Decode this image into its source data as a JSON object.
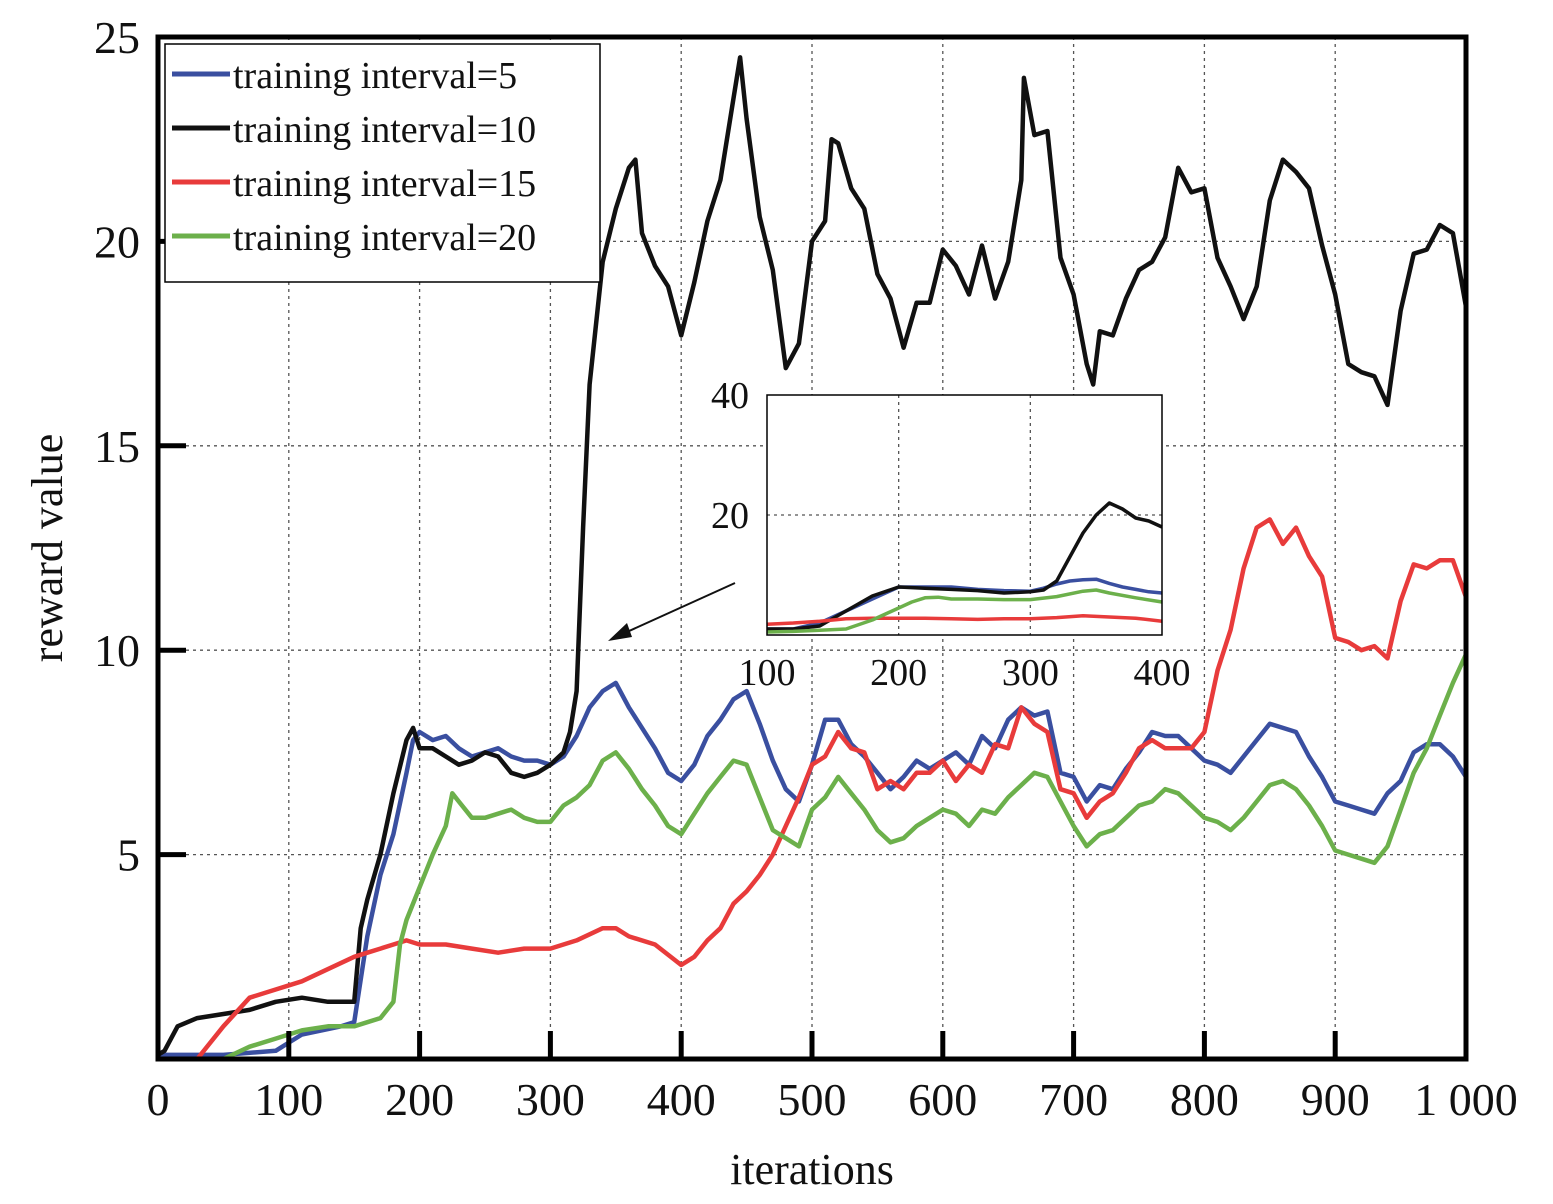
{
  "chart_data": {
    "type": "line",
    "title": "",
    "xlabel": "iterations",
    "ylabel": "reward value",
    "xlim": [
      0,
      1000
    ],
    "ylim": [
      0,
      25
    ],
    "x_ticks": [
      0,
      100,
      200,
      300,
      400,
      500,
      600,
      700,
      800,
      900,
      1000
    ],
    "x_tick_labels": [
      "0",
      "100",
      "200",
      "300",
      "400",
      "500",
      "600",
      "700",
      "800",
      "900",
      "1 000"
    ],
    "y_ticks": [
      5,
      10,
      15,
      20,
      25
    ],
    "y_tick_labels": [
      "5",
      "10",
      "15",
      "20",
      "25"
    ],
    "grid": true,
    "legend_position": "top-left",
    "series": [
      {
        "name": "training interval=5",
        "color": "#3a4fa0",
        "x": [
          0,
          50,
          90,
          100,
          110,
          140,
          150,
          160,
          170,
          180,
          190,
          195,
          200,
          210,
          220,
          230,
          240,
          250,
          260,
          270,
          280,
          290,
          300,
          310,
          320,
          330,
          340,
          350,
          360,
          370,
          380,
          390,
          400,
          410,
          420,
          430,
          440,
          450,
          460,
          470,
          480,
          490,
          500,
          510,
          520,
          530,
          540,
          550,
          560,
          570,
          580,
          590,
          600,
          610,
          620,
          630,
          640,
          650,
          660,
          670,
          680,
          690,
          700,
          710,
          720,
          730,
          740,
          750,
          760,
          770,
          780,
          790,
          800,
          810,
          820,
          830,
          840,
          850,
          860,
          870,
          880,
          890,
          900,
          910,
          920,
          930,
          940,
          950,
          960,
          970,
          980,
          990,
          1000
        ],
        "values": [
          0.1,
          0.1,
          0.2,
          0.4,
          0.6,
          0.8,
          0.9,
          3.0,
          4.5,
          5.5,
          7.0,
          7.8,
          8.0,
          7.8,
          7.9,
          7.6,
          7.4,
          7.5,
          7.6,
          7.4,
          7.3,
          7.3,
          7.2,
          7.4,
          7.9,
          8.6,
          9.0,
          9.2,
          8.6,
          8.1,
          7.6,
          7.0,
          6.8,
          7.2,
          7.9,
          8.3,
          8.8,
          9.0,
          8.2,
          7.3,
          6.6,
          6.3,
          7.2,
          8.3,
          8.3,
          7.7,
          7.4,
          7.0,
          6.6,
          6.9,
          7.3,
          7.1,
          7.3,
          7.5,
          7.2,
          7.9,
          7.6,
          8.3,
          8.6,
          8.4,
          8.5,
          7.0,
          6.9,
          6.3,
          6.7,
          6.6,
          7.1,
          7.5,
          8.0,
          7.9,
          7.9,
          7.6,
          7.3,
          7.2,
          7.0,
          7.4,
          7.8,
          8.2,
          8.1,
          8.0,
          7.4,
          6.9,
          6.3,
          6.2,
          6.1,
          6.0,
          6.5,
          6.8,
          7.5,
          7.7,
          7.7,
          7.4,
          6.9
        ]
      },
      {
        "name": "training interval=10",
        "color": "#111111",
        "x": [
          0,
          5,
          15,
          30,
          50,
          70,
          90,
          110,
          130,
          150,
          155,
          160,
          170,
          180,
          190,
          195,
          200,
          210,
          220,
          230,
          240,
          250,
          260,
          270,
          280,
          290,
          300,
          310,
          315,
          320,
          325,
          330,
          340,
          350,
          360,
          365,
          370,
          380,
          390,
          400,
          410,
          420,
          430,
          440,
          445,
          450,
          460,
          470,
          480,
          490,
          500,
          510,
          515,
          520,
          530,
          540,
          550,
          560,
          570,
          580,
          590,
          600,
          610,
          620,
          630,
          640,
          650,
          660,
          662,
          670,
          680,
          690,
          700,
          710,
          715,
          720,
          730,
          740,
          750,
          760,
          770,
          780,
          790,
          800,
          810,
          820,
          830,
          840,
          850,
          860,
          870,
          880,
          890,
          900,
          910,
          920,
          930,
          940,
          950,
          960,
          970,
          980,
          990,
          1000
        ],
        "values": [
          0.1,
          0.2,
          0.8,
          1.0,
          1.1,
          1.2,
          1.4,
          1.5,
          1.4,
          1.4,
          3.2,
          3.9,
          5.0,
          6.5,
          7.8,
          8.1,
          7.6,
          7.6,
          7.4,
          7.2,
          7.3,
          7.5,
          7.4,
          7.0,
          6.9,
          7.0,
          7.2,
          7.5,
          8.0,
          9.0,
          13.0,
          16.5,
          19.5,
          20.8,
          21.8,
          22.0,
          20.2,
          19.4,
          18.9,
          17.7,
          19.0,
          20.5,
          21.5,
          23.5,
          24.5,
          23.0,
          20.6,
          19.3,
          16.9,
          17.5,
          20.0,
          20.5,
          22.5,
          22.4,
          21.3,
          20.8,
          19.2,
          18.6,
          17.4,
          18.5,
          18.5,
          19.8,
          19.4,
          18.7,
          19.9,
          18.6,
          19.5,
          21.5,
          24.0,
          22.6,
          22.7,
          19.6,
          18.7,
          17.0,
          16.5,
          17.8,
          17.7,
          18.6,
          19.3,
          19.5,
          20.1,
          21.8,
          21.2,
          21.3,
          19.6,
          18.9,
          18.1,
          18.9,
          21.0,
          22.0,
          21.7,
          21.3,
          19.9,
          18.7,
          17.0,
          16.8,
          16.7,
          16.0,
          18.3,
          19.7,
          19.8,
          20.4,
          20.2,
          18.4
        ]
      },
      {
        "name": "training interval=15",
        "color": "#e83b3b",
        "x": [
          0,
          30,
          50,
          70,
          90,
          110,
          130,
          150,
          160,
          170,
          180,
          190,
          200,
          220,
          240,
          260,
          280,
          300,
          320,
          340,
          350,
          360,
          380,
          400,
          410,
          420,
          430,
          440,
          450,
          460,
          470,
          480,
          490,
          500,
          510,
          520,
          530,
          540,
          550,
          560,
          570,
          580,
          590,
          600,
          610,
          620,
          630,
          640,
          650,
          660,
          670,
          680,
          690,
          700,
          710,
          720,
          730,
          740,
          750,
          760,
          770,
          780,
          790,
          800,
          810,
          820,
          830,
          840,
          850,
          860,
          870,
          880,
          890,
          900,
          910,
          920,
          930,
          940,
          950,
          960,
          970,
          980,
          990,
          1000
        ],
        "values": [
          0.0,
          0.0,
          0.8,
          1.5,
          1.7,
          1.9,
          2.2,
          2.5,
          2.6,
          2.7,
          2.8,
          2.9,
          2.8,
          2.8,
          2.7,
          2.6,
          2.7,
          2.7,
          2.9,
          3.2,
          3.2,
          3.0,
          2.8,
          2.3,
          2.5,
          2.9,
          3.2,
          3.8,
          4.1,
          4.5,
          5.0,
          5.7,
          6.4,
          7.2,
          7.4,
          8.0,
          7.6,
          7.5,
          6.6,
          6.8,
          6.6,
          7.0,
          7.0,
          7.3,
          6.8,
          7.2,
          7.0,
          7.7,
          7.6,
          8.6,
          8.2,
          8.0,
          6.6,
          6.5,
          5.9,
          6.3,
          6.5,
          7.0,
          7.6,
          7.8,
          7.6,
          7.6,
          7.6,
          8.0,
          9.5,
          10.5,
          12.0,
          13.0,
          13.2,
          12.6,
          13.0,
          12.3,
          11.8,
          10.3,
          10.2,
          10.0,
          10.1,
          9.8,
          11.2,
          12.1,
          12.0,
          12.2,
          12.2,
          11.3
        ]
      },
      {
        "name": "training interval=20",
        "color": "#6cb04b",
        "x": [
          0,
          50,
          70,
          90,
          110,
          130,
          150,
          170,
          180,
          185,
          190,
          200,
          210,
          220,
          225,
          230,
          240,
          250,
          260,
          270,
          280,
          290,
          300,
          310,
          320,
          330,
          340,
          350,
          360,
          370,
          380,
          390,
          400,
          410,
          420,
          430,
          440,
          450,
          460,
          470,
          480,
          490,
          500,
          510,
          520,
          530,
          540,
          550,
          560,
          570,
          580,
          590,
          600,
          610,
          620,
          630,
          640,
          650,
          660,
          670,
          680,
          690,
          700,
          710,
          720,
          730,
          740,
          750,
          760,
          770,
          780,
          790,
          800,
          810,
          820,
          830,
          840,
          850,
          860,
          870,
          880,
          890,
          900,
          910,
          920,
          930,
          940,
          950,
          960,
          970,
          980,
          990,
          1000
        ],
        "values": [
          0.0,
          0.0,
          0.3,
          0.5,
          0.7,
          0.8,
          0.8,
          1.0,
          1.4,
          2.8,
          3.4,
          4.2,
          5.0,
          5.7,
          6.5,
          6.3,
          5.9,
          5.9,
          6.0,
          6.1,
          5.9,
          5.8,
          5.8,
          6.2,
          6.4,
          6.7,
          7.3,
          7.5,
          7.1,
          6.6,
          6.2,
          5.7,
          5.5,
          6.0,
          6.5,
          6.9,
          7.3,
          7.2,
          6.4,
          5.6,
          5.4,
          5.2,
          6.1,
          6.4,
          6.9,
          6.5,
          6.1,
          5.6,
          5.3,
          5.4,
          5.7,
          5.9,
          6.1,
          6.0,
          5.7,
          6.1,
          6.0,
          6.4,
          6.7,
          7.0,
          6.9,
          6.3,
          5.7,
          5.2,
          5.5,
          5.6,
          5.9,
          6.2,
          6.3,
          6.6,
          6.5,
          6.2,
          5.9,
          5.8,
          5.6,
          5.9,
          6.3,
          6.7,
          6.8,
          6.6,
          6.2,
          5.7,
          5.1,
          5.0,
          4.9,
          4.8,
          5.2,
          6.1,
          7.0,
          7.6,
          8.4,
          9.2,
          9.9
        ]
      }
    ],
    "inset": {
      "xlim": [
        100,
        400
      ],
      "ylim": [
        0,
        40
      ],
      "x_ticks": [
        100,
        200,
        300,
        400
      ],
      "x_tick_labels": [
        "100",
        "200",
        "300",
        "400"
      ],
      "y_ticks": [
        20,
        40
      ],
      "y_tick_labels": [
        "20",
        "40"
      ],
      "grid": true,
      "series": [
        {
          "color": "#3a4fa0",
          "x": [
            100,
            120,
            140,
            160,
            180,
            200,
            220,
            240,
            260,
            280,
            300,
            310,
            320,
            330,
            340,
            350,
            360,
            370,
            380,
            390,
            400
          ],
          "values": [
            1,
            1,
            2,
            4,
            6,
            8,
            8,
            8,
            7.6,
            7.4,
            7.3,
            7.8,
            8.5,
            9.0,
            9.2,
            9.3,
            8.6,
            8.0,
            7.6,
            7.2,
            7.0
          ]
        },
        {
          "color": "#111111",
          "x": [
            100,
            120,
            140,
            160,
            180,
            200,
            220,
            240,
            260,
            280,
            300,
            310,
            320,
            330,
            340,
            350,
            360,
            370,
            380,
            390,
            400
          ],
          "values": [
            1,
            1,
            1.5,
            4,
            6.5,
            8,
            7.8,
            7.6,
            7.4,
            7.0,
            7.2,
            7.5,
            9.0,
            13.0,
            17.0,
            20.0,
            22.0,
            21.0,
            19.5,
            19.0,
            18.0
          ]
        },
        {
          "color": "#e83b3b",
          "x": [
            100,
            120,
            140,
            160,
            180,
            200,
            220,
            240,
            260,
            280,
            300,
            320,
            340,
            360,
            380,
            400
          ],
          "values": [
            1.8,
            2.0,
            2.3,
            2.7,
            2.8,
            2.8,
            2.8,
            2.7,
            2.6,
            2.7,
            2.7,
            2.9,
            3.2,
            3.0,
            2.8,
            2.3
          ]
        },
        {
          "color": "#6cb04b",
          "x": [
            100,
            120,
            140,
            160,
            180,
            190,
            200,
            210,
            220,
            230,
            240,
            260,
            280,
            300,
            320,
            340,
            350,
            360,
            380,
            400
          ],
          "values": [
            0.5,
            0.6,
            0.8,
            1.0,
            2.5,
            3.5,
            4.5,
            5.5,
            6.2,
            6.3,
            6.0,
            6.0,
            5.9,
            5.9,
            6.4,
            7.3,
            7.5,
            7.0,
            6.2,
            5.5
          ]
        }
      ]
    }
  }
}
